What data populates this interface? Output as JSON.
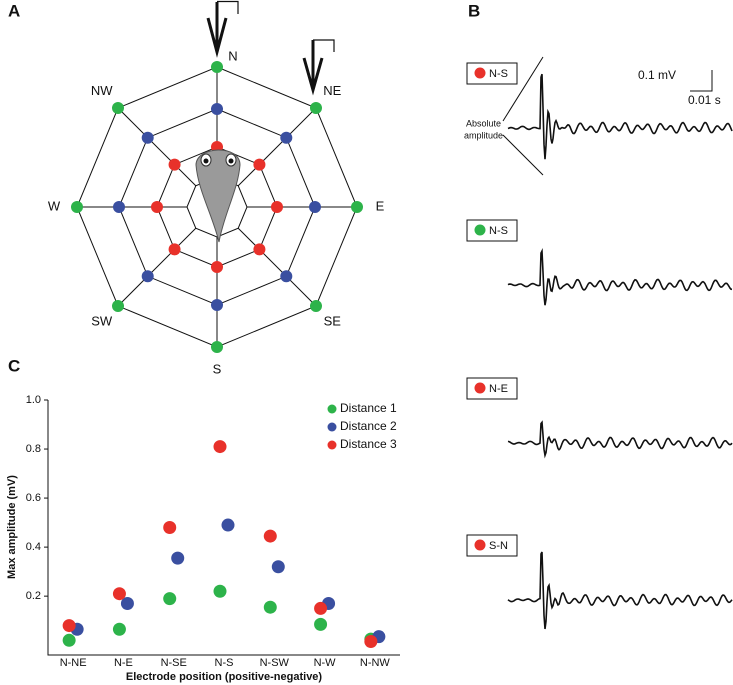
{
  "panel_a": {
    "label": "A",
    "directions": [
      "N",
      "NE",
      "E",
      "SE",
      "S",
      "SW",
      "W",
      "NW"
    ]
  },
  "panel_b": {
    "label": "B",
    "scale_voltage": "0.1 mV",
    "scale_time": "0.01 s",
    "annotation": [
      "Absolute",
      "amplitude"
    ],
    "traces": [
      {
        "name": "N-S",
        "color": "#e8312a"
      },
      {
        "name": "N-S",
        "color": "#2db34a"
      },
      {
        "name": "N-E",
        "color": "#e8312a"
      },
      {
        "name": "S-N",
        "color": "#e8312a"
      }
    ]
  },
  "chart_data": {
    "type": "scatter",
    "panel_label": "C",
    "x_label": "Electrode position (positive-negative)",
    "y_label": "Max amplitude (mV)",
    "categories": [
      "N-NE",
      "N-E",
      "N-SE",
      "N-S",
      "N-SW",
      "N-W",
      "N-NW"
    ],
    "series": [
      {
        "name": "Distance 1",
        "color": "#2db34a",
        "values": [
          0.02,
          0.065,
          0.19,
          0.22,
          0.155,
          0.085,
          0.025
        ]
      },
      {
        "name": "Distance 2",
        "color": "#3a4fa0",
        "values": [
          0.065,
          0.17,
          0.355,
          0.49,
          0.32,
          0.17,
          0.035
        ]
      },
      {
        "name": "Distance 3",
        "color": "#e8312a",
        "values": [
          0.08,
          0.21,
          0.48,
          0.81,
          0.445,
          0.15,
          0.015
        ]
      }
    ],
    "ylim": [
      -0.04,
      1.0
    ],
    "yticks": [
      0.2,
      0.4,
      0.6,
      0.8,
      {
        "value": 1,
        "label": "1.0"
      }
    ],
    "legend": "upper-right"
  }
}
